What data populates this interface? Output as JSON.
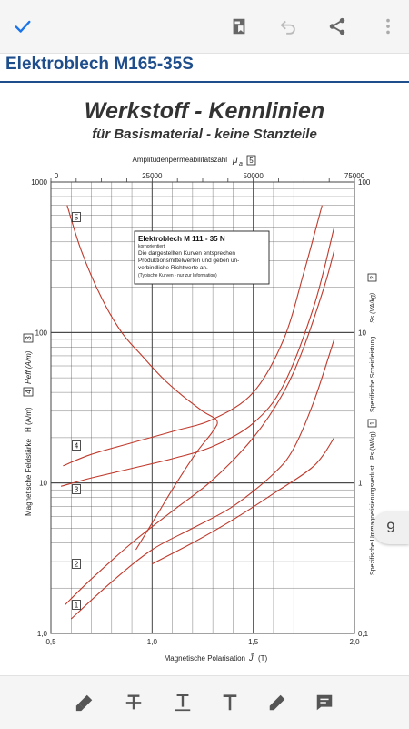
{
  "toolbar": {
    "icons": [
      "check-icon",
      "bookmark-icon",
      "undo-icon",
      "share-icon",
      "more-icon"
    ],
    "accent": "#1a73e8"
  },
  "document": {
    "title": "Elektroblech M165-35S",
    "title_color": "#1f4e8c"
  },
  "chart_data": {
    "type": "line",
    "title": "Werkstoff - Kennlinien",
    "subtitle": "für Basismaterial - keine Stanzteile",
    "top_axis_label": "Amplitudenpermeabilitätszahl",
    "top_axis_symbol": "μ",
    "top_axis_symbol_sub": "a",
    "top_axis_ticks": [
      "0",
      "25000",
      "50000",
      "75000"
    ],
    "xlabel": "Magnetische Polarisation",
    "xlabel_symbol": "Ĵ",
    "xlabel_unit": "(T)",
    "x_ticks": [
      "0,5",
      "1,0",
      "1,5",
      "2,0"
    ],
    "xlim": [
      0.5,
      2.0
    ],
    "ylabel_left": "Magnetische Feldstärke",
    "ylabel_left_symbols": "Ĥ (A/m)",
    "ylabel_left_symbols2": "Heff (A/m)",
    "ylabel_left_box4": "4",
    "ylabel_left_box3": "3",
    "ylabel_right": "Spezifische Scheinleistung",
    "ylabel_right_symbols": "Ss (VA/kg)",
    "ylabel_right_box2": "2",
    "ylabel_right2": "Spezifische Ummagnetisierungsverlust",
    "ylabel_right2_symbols": "Ps (W/kg)",
    "ylabel_right2_box1": "1",
    "y_ticks_left": [
      "1,0",
      "10",
      "100",
      "1000"
    ],
    "y_ticks_right": [
      "0,1",
      "1",
      "10",
      "100"
    ],
    "ylim": [
      1,
      1000
    ],
    "y_scale": "log",
    "grid": true,
    "curve_color": "#c0392b",
    "legend_box": {
      "title": "Elektroblech   M  111 - 35 N",
      "line1": "kornorientiert",
      "line2": "Die dargestellten Kurven entsprechen",
      "line3": "Produktionsmittelwerten und geben un-",
      "line4": "verbindliche Richtwerte an.",
      "line5": "(Typische Kurven - nur zur Information)"
    },
    "series": [
      {
        "name": "1",
        "x": [
          0.6,
          0.8,
          1.0,
          1.2,
          1.4,
          1.6,
          1.7,
          1.8,
          1.9
        ],
        "y": [
          1.25,
          2.2,
          3.6,
          5.0,
          7.0,
          11.5,
          17.0,
          35.0,
          90.0
        ]
      },
      {
        "name": "2",
        "x": [
          0.57,
          0.7,
          0.9,
          1.1,
          1.3,
          1.5,
          1.65,
          1.75,
          1.85,
          1.9
        ],
        "y": [
          1.55,
          2.3,
          4.0,
          6.5,
          10.5,
          20.0,
          40.0,
          80.0,
          200.0,
          350.0
        ]
      },
      {
        "name": "3",
        "x": [
          0.55,
          0.7,
          0.9,
          1.1,
          1.3,
          1.5,
          1.65,
          1.8,
          1.9
        ],
        "y": [
          9.5,
          10.8,
          12.5,
          14.5,
          17.5,
          25.0,
          45.0,
          150.0,
          500.0
        ]
      },
      {
        "name": "4",
        "x": [
          0.56,
          0.7,
          0.9,
          1.1,
          1.3,
          1.5,
          1.65,
          1.75,
          1.84
        ],
        "y": [
          13.0,
          15.5,
          18.5,
          22.0,
          26.5,
          40.0,
          90.0,
          250.0,
          700.0
        ]
      },
      {
        "name": "5",
        "x": [
          0.58,
          0.65,
          0.75,
          0.85,
          0.95,
          1.05,
          1.15,
          1.25,
          1.32,
          1.3,
          1.22,
          1.12,
          1.02,
          0.92
        ],
        "y": [
          700,
          350,
          170,
          100,
          70,
          50,
          38,
          30,
          26,
          22,
          16,
          10,
          6,
          3.6
        ]
      },
      {
        "name": "",
        "x": [
          1.0,
          1.2,
          1.4,
          1.6,
          1.8,
          1.9
        ],
        "y": [
          2.9,
          4.0,
          5.7,
          8.5,
          13.0,
          20.0
        ]
      }
    ],
    "curve_labels": [
      "1",
      "2",
      "3",
      "4",
      "5"
    ]
  },
  "page_indicator": {
    "current": "9"
  },
  "bottom_tools": [
    "highlighter-icon",
    "strikethrough-icon",
    "underline-icon",
    "text-icon",
    "pen-icon",
    "comment-icon"
  ]
}
